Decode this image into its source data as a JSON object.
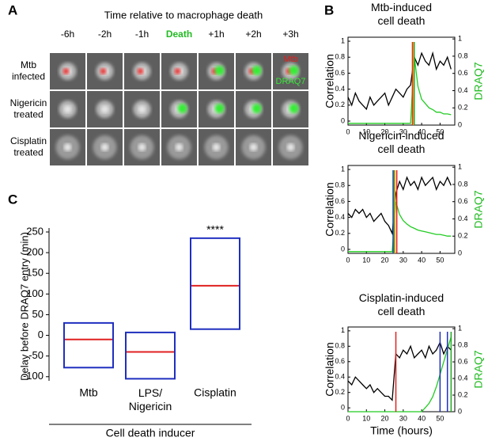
{
  "panel_labels": [
    "A",
    "B",
    "C"
  ],
  "panel_a": {
    "title": "Time relative to macrophage death",
    "columns": [
      "-6h",
      "-2h",
      "-1h",
      "Death",
      "+1h",
      "+2h",
      "+3h"
    ],
    "rows": [
      "Mtb\ninfected",
      "Nigericin\ntreated",
      "Cisplatin\ntreated"
    ],
    "overlay_labels": [
      {
        "text": "Mtb",
        "color": "#e0201e"
      },
      {
        "text": "DRAQ7",
        "color": "#39e639"
      }
    ],
    "highlight_column": 3,
    "highlight_color": "#22bb22"
  },
  "chart_data": [
    {
      "type": "box",
      "ylabel": "Delay before DRAQ7 entry (min)",
      "xlabel": "Cell death inducer",
      "categories": [
        "Mtb",
        "LPS/\nNigericin",
        "Cisplatin"
      ],
      "low": [
        -78,
        -105,
        15
      ],
      "high": [
        30,
        7,
        235
      ],
      "median": [
        -10,
        -40,
        120
      ],
      "box_color": "#1f2fbf",
      "median_color": "#e02020",
      "ylim": [
        -110,
        250
      ],
      "yticks": [
        -100,
        -50,
        0,
        50,
        100,
        150,
        200,
        250
      ],
      "annotations": [
        {
          "text": "****",
          "category": 2
        }
      ]
    },
    {
      "type": "line",
      "title": "Mtb-induced\ncell death",
      "ylabel": "Correlation",
      "y2label": "DRAQ7",
      "y2label_color": "#22bb22",
      "x": [
        0,
        2,
        4,
        6,
        8,
        10,
        12,
        14,
        16,
        18,
        20,
        22,
        24,
        26,
        28,
        30,
        32,
        34,
        36,
        38,
        40,
        42,
        44,
        46,
        48,
        50,
        52,
        54,
        56
      ],
      "series": [
        {
          "color": "#000000",
          "values": [
            0.3,
            0.2,
            0.35,
            0.25,
            0.2,
            0.15,
            0.3,
            0.2,
            0.25,
            0.3,
            0.35,
            0.2,
            0.3,
            0.4,
            0.35,
            0.3,
            0.4,
            0.45,
            0.8,
            0.7,
            0.85,
            0.75,
            0.7,
            0.85,
            0.65,
            0.75,
            0.7,
            0.8,
            0.65
          ]
        },
        {
          "color": "#22cc22",
          "axis": "y2",
          "values": [
            0.02,
            0.02,
            0.02,
            0.02,
            0.02,
            0.02,
            0.02,
            0.02,
            0.02,
            0.02,
            0.02,
            0.02,
            0.02,
            0.02,
            0.02,
            0.02,
            0.02,
            0.02,
            0.8,
            0.45,
            0.3,
            0.25,
            0.2,
            0.18,
            0.15,
            0.15,
            0.13,
            0.13,
            0.12
          ]
        }
      ],
      "markers": [
        {
          "x": 35,
          "color": "#e02020"
        },
        {
          "x": 35.5,
          "color": "#f0a020"
        },
        {
          "x": 36,
          "color": "#22aa22"
        }
      ],
      "xlim": [
        0,
        58
      ],
      "xticks": [
        0,
        10,
        20,
        30,
        40,
        50
      ],
      "ylim": [
        -0.05,
        1.05
      ],
      "yticks": [
        0,
        0.2,
        0.4,
        0.6,
        0.8,
        1
      ],
      "y2lim": [
        0,
        1.02
      ],
      "y2ticks": [
        0,
        0.2,
        0.4,
        0.6,
        0.8,
        1
      ]
    },
    {
      "type": "line",
      "title": "Nigericin-induced\ncell death",
      "ylabel": "Correlation",
      "y2label": "DRAQ7",
      "y2label_color": "#22bb22",
      "x": [
        0,
        2,
        4,
        6,
        8,
        10,
        12,
        14,
        16,
        18,
        20,
        22,
        24,
        26,
        28,
        30,
        32,
        34,
        36,
        38,
        40,
        42,
        44,
        46,
        48,
        50,
        52,
        54,
        56
      ],
      "series": [
        {
          "color": "#000000",
          "values": [
            0.45,
            0.4,
            0.5,
            0.45,
            0.5,
            0.4,
            0.45,
            0.35,
            0.4,
            0.45,
            0.35,
            0.3,
            0.2,
            0.7,
            0.85,
            0.75,
            0.9,
            0.8,
            0.85,
            0.75,
            0.9,
            0.8,
            0.85,
            0.9,
            0.75,
            0.85,
            0.8,
            0.9,
            0.8
          ]
        },
        {
          "color": "#22cc22",
          "axis": "y2",
          "values": [
            0.02,
            0.02,
            0.02,
            0.02,
            0.02,
            0.02,
            0.02,
            0.02,
            0.02,
            0.02,
            0.02,
            0.02,
            0.02,
            0.6,
            0.45,
            0.38,
            0.34,
            0.31,
            0.29,
            0.27,
            0.26,
            0.25,
            0.24,
            0.23,
            0.22,
            0.22,
            0.21,
            0.2,
            0.2
          ]
        }
      ],
      "markers": [
        {
          "x": 24.5,
          "color": "#1f2fbf"
        },
        {
          "x": 25,
          "color": "#22aa22"
        },
        {
          "x": 25.5,
          "color": "#f0a020"
        },
        {
          "x": 26.5,
          "color": "#e02020"
        }
      ],
      "xlim": [
        0,
        58
      ],
      "xticks": [
        0,
        10,
        20,
        30,
        40,
        50
      ],
      "ylim": [
        -0.05,
        1.05
      ],
      "yticks": [
        0,
        0.2,
        0.4,
        0.6,
        0.8,
        1
      ],
      "y2lim": [
        0,
        1.02
      ],
      "y2ticks": [
        0,
        0.2,
        0.4,
        0.6,
        0.8,
        1
      ]
    },
    {
      "type": "line",
      "title": "Cisplatin-induced\ncell death",
      "ylabel": "Correlation",
      "y2label": "DRAQ7",
      "y2label_color": "#22bb22",
      "xlabel": "Time (hours)",
      "x": [
        0,
        2,
        4,
        6,
        8,
        10,
        12,
        14,
        16,
        18,
        20,
        22,
        24,
        26,
        28,
        30,
        32,
        34,
        36,
        38,
        40,
        42,
        44,
        46,
        48,
        50,
        52,
        54,
        56
      ],
      "series": [
        {
          "color": "#000000",
          "values": [
            0.35,
            0.3,
            0.4,
            0.35,
            0.3,
            0.25,
            0.3,
            0.2,
            0.25,
            0.2,
            0.15,
            0.15,
            0.1,
            0.7,
            0.65,
            0.75,
            0.7,
            0.8,
            0.65,
            0.7,
            0.75,
            0.65,
            0.8,
            0.7,
            0.75,
            0.85,
            0.7,
            0.8,
            0.75
          ]
        },
        {
          "color": "#22cc22",
          "axis": "y2",
          "values": [
            0,
            0,
            0,
            0,
            0,
            0,
            0,
            0,
            0,
            0,
            0,
            0,
            0,
            0,
            0,
            0,
            0,
            0,
            0,
            0,
            0,
            0.05,
            0.1,
            0.18,
            0.3,
            0.45,
            0.6,
            0.75,
            0.9
          ]
        }
      ],
      "markers": [
        {
          "x": 26,
          "color": "#e02020"
        },
        {
          "x": 50,
          "color": "#1f2fbf"
        },
        {
          "x": 54,
          "color": "#1f2fbf"
        },
        {
          "x": 56,
          "color": "#22aa22"
        }
      ],
      "xlim": [
        0,
        58
      ],
      "xticks": [
        0,
        10,
        20,
        30,
        40,
        50
      ],
      "ylim": [
        -0.05,
        1.05
      ],
      "yticks": [
        0,
        0.2,
        0.4,
        0.6,
        0.8,
        1
      ],
      "y2lim": [
        0,
        1.02
      ],
      "y2ticks": [
        0,
        0.2,
        0.4,
        0.6,
        0.8,
        1
      ]
    }
  ]
}
